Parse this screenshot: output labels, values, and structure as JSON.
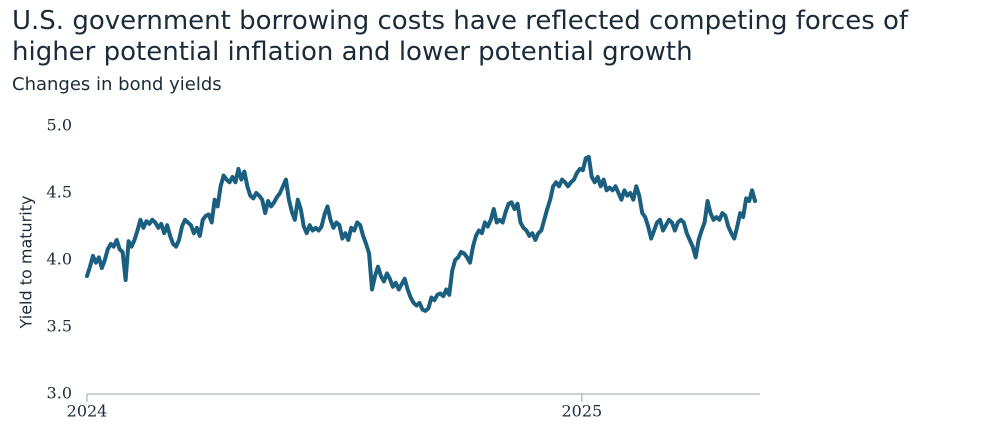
{
  "chart_data": {
    "type": "line",
    "title": "U.S. government borrowing costs have reflected competing forces of higher potential inflation and lower potential growth",
    "subtitle": "Changes in bond yields",
    "y_label": "Yield to maturity",
    "xlim": [
      2024,
      2025.36
    ],
    "xticks": [
      2024,
      2025
    ],
    "ylim": [
      3,
      5
    ],
    "yticks": [
      {
        "value": 3,
        "label": "3.0"
      },
      {
        "value": 3.5,
        "label": "3.5"
      },
      {
        "value": 4,
        "label": "4.0"
      },
      {
        "value": 4.5,
        "label": "4.5"
      },
      {
        "value": 5,
        "label": "5.0"
      }
    ],
    "grid": false,
    "x": [
      2024,
      2024.006,
      2024.012,
      2024.018,
      2024.024,
      2024.03,
      2024.036,
      2024.042,
      2024.048,
      2024.054,
      2024.06,
      2024.066,
      2024.072,
      2024.078,
      2024.084,
      2024.09,
      2024.096,
      2024.102,
      2024.108,
      2024.114,
      2024.12,
      2024.126,
      2024.132,
      2024.138,
      2024.144,
      2024.15,
      2024.156,
      2024.162,
      2024.168,
      2024.174,
      2024.18,
      2024.186,
      2024.192,
      2024.198,
      2024.204,
      2024.21,
      2024.216,
      2024.222,
      2024.228,
      2024.234,
      2024.24,
      2024.246,
      2024.252,
      2024.258,
      2024.264,
      2024.27,
      2024.276,
      2024.282,
      2024.288,
      2024.294,
      2024.3,
      2024.306,
      2024.312,
      2024.318,
      2024.324,
      2024.33,
      2024.336,
      2024.342,
      2024.348,
      2024.354,
      2024.36,
      2024.366,
      2024.372,
      2024.378,
      2024.384,
      2024.39,
      2024.396,
      2024.402,
      2024.408,
      2024.414,
      2024.42,
      2024.426,
      2024.432,
      2024.438,
      2024.444,
      2024.45,
      2024.456,
      2024.462,
      2024.468,
      2024.474,
      2024.48,
      2024.486,
      2024.492,
      2024.498,
      2024.504,
      2024.51,
      2024.516,
      2024.522,
      2024.528,
      2024.534,
      2024.54,
      2024.546,
      2024.552,
      2024.558,
      2024.564,
      2024.57,
      2024.576,
      2024.582,
      2024.588,
      2024.594,
      2024.6,
      2024.606,
      2024.612,
      2024.618,
      2024.624,
      2024.63,
      2024.636,
      2024.642,
      2024.648,
      2024.654,
      2024.66,
      2024.666,
      2024.672,
      2024.678,
      2024.684,
      2024.69,
      2024.696,
      2024.702,
      2024.708,
      2024.714,
      2024.72,
      2024.726,
      2024.732,
      2024.738,
      2024.744,
      2024.75,
      2024.756,
      2024.762,
      2024.768,
      2024.774,
      2024.78,
      2024.786,
      2024.792,
      2024.798,
      2024.804,
      2024.81,
      2024.816,
      2024.822,
      2024.828,
      2024.834,
      2024.84,
      2024.846,
      2024.852,
      2024.858,
      2024.864,
      2024.87,
      2024.876,
      2024.882,
      2024.888,
      2024.894,
      2024.9,
      2024.906,
      2024.912,
      2024.918,
      2024.924,
      2024.93,
      2024.936,
      2024.942,
      2024.948,
      2024.954,
      2024.96,
      2024.966,
      2024.972,
      2024.978,
      2024.984,
      2024.99,
      2024.996,
      2025.002,
      2025.008,
      2025.014,
      2025.02,
      2025.026,
      2025.032,
      2025.038,
      2025.044,
      2025.05,
      2025.056,
      2025.062,
      2025.068,
      2025.074,
      2025.08,
      2025.086,
      2025.092,
      2025.098,
      2025.104,
      2025.11,
      2025.116,
      2025.122,
      2025.128,
      2025.134,
      2025.14,
      2025.146,
      2025.152,
      2025.158,
      2025.164,
      2025.17,
      2025.176,
      2025.182,
      2025.188,
      2025.194,
      2025.2,
      2025.206,
      2025.212,
      2025.218,
      2025.224,
      2025.23,
      2025.236,
      2025.242,
      2025.248,
      2025.254,
      2025.26,
      2025.266,
      2025.272,
      2025.278,
      2025.284,
      2025.29,
      2025.296,
      2025.302,
      2025.308,
      2025.314,
      2025.32,
      2025.326,
      2025.332,
      2025.338,
      2025.344,
      2025.35
    ],
    "series": [
      {
        "name": "Yield to maturity",
        "color": "#1b5f80",
        "values": [
          3.88,
          3.95,
          4.03,
          3.98,
          4.02,
          3.94,
          4.0,
          4.08,
          4.12,
          4.1,
          4.15,
          4.08,
          4.06,
          3.85,
          4.14,
          4.1,
          4.15,
          4.22,
          4.3,
          4.24,
          4.29,
          4.27,
          4.3,
          4.28,
          4.24,
          4.27,
          4.2,
          4.26,
          4.18,
          4.12,
          4.1,
          4.15,
          4.25,
          4.3,
          4.28,
          4.26,
          4.2,
          4.24,
          4.18,
          4.3,
          4.33,
          4.34,
          4.28,
          4.45,
          4.4,
          4.55,
          4.63,
          4.6,
          4.58,
          4.62,
          4.58,
          4.68,
          4.6,
          4.66,
          4.55,
          4.48,
          4.46,
          4.5,
          4.48,
          4.45,
          4.35,
          4.44,
          4.4,
          4.43,
          4.47,
          4.5,
          4.55,
          4.6,
          4.45,
          4.36,
          4.3,
          4.45,
          4.38,
          4.25,
          4.2,
          4.26,
          4.22,
          4.24,
          4.22,
          4.25,
          4.34,
          4.4,
          4.3,
          4.24,
          4.28,
          4.26,
          4.16,
          4.2,
          4.15,
          4.24,
          4.22,
          4.28,
          4.26,
          4.18,
          4.12,
          4.05,
          3.78,
          3.88,
          3.95,
          3.88,
          3.84,
          3.9,
          3.86,
          3.8,
          3.83,
          3.78,
          3.82,
          3.86,
          3.78,
          3.72,
          3.68,
          3.66,
          3.68,
          3.63,
          3.62,
          3.64,
          3.72,
          3.7,
          3.74,
          3.75,
          3.73,
          3.78,
          3.74,
          3.92,
          4.0,
          4.02,
          4.06,
          4.05,
          4.02,
          3.98,
          4.1,
          4.18,
          4.22,
          4.2,
          4.28,
          4.25,
          4.3,
          4.38,
          4.28,
          4.3,
          4.28,
          4.36,
          4.42,
          4.43,
          4.38,
          4.42,
          4.28,
          4.24,
          4.22,
          4.18,
          4.2,
          4.15,
          4.2,
          4.22,
          4.3,
          4.38,
          4.45,
          4.55,
          4.58,
          4.55,
          4.6,
          4.58,
          4.55,
          4.58,
          4.6,
          4.65,
          4.68,
          4.67,
          4.76,
          4.77,
          4.62,
          4.58,
          4.62,
          4.55,
          4.6,
          4.52,
          4.54,
          4.52,
          4.55,
          4.5,
          4.45,
          4.52,
          4.48,
          4.5,
          4.45,
          4.55,
          4.48,
          4.35,
          4.32,
          4.25,
          4.16,
          4.22,
          4.28,
          4.3,
          4.22,
          4.26,
          4.3,
          4.28,
          4.22,
          4.28,
          4.3,
          4.28,
          4.2,
          4.15,
          4.1,
          4.02,
          4.15,
          4.22,
          4.28,
          4.44,
          4.35,
          4.3,
          4.32,
          4.3,
          4.35,
          4.33,
          4.25,
          4.2,
          4.16,
          4.25,
          4.35,
          4.32,
          4.46,
          4.44,
          4.52,
          4.44
        ]
      }
    ]
  }
}
